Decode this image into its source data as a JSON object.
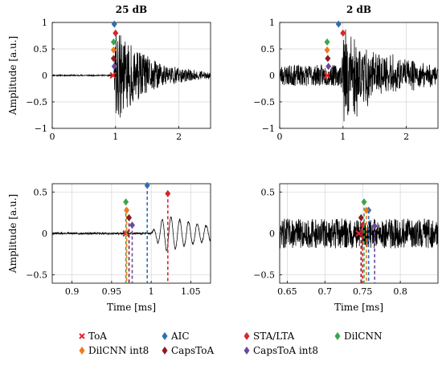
{
  "chart_data": [
    {
      "type": "line",
      "title": "25 dB",
      "xlabel": "",
      "ylabel": "Amplitude [a.u.]",
      "xlim": [
        0,
        2.5
      ],
      "ylim": [
        -1,
        1
      ],
      "xticks": [
        "0",
        "1",
        "2"
      ],
      "yticks": [
        "−1",
        "−0.5",
        "0",
        "0.5",
        "1"
      ],
      "grid": true,
      "signal": {
        "kind": "acoustic-burst",
        "noise": 0.012,
        "onset": 0.97,
        "peak": 0.95,
        "decay": 0.55,
        "seed": 11
      },
      "markers": [
        {
          "method": "ToA",
          "x": 0.96,
          "y": 0.0
        },
        {
          "method": "AIC",
          "x": 0.98,
          "y": 0.97
        },
        {
          "method": "STA/LTA",
          "x": 1.0,
          "y": 0.8
        },
        {
          "method": "DilCNN",
          "x": 0.97,
          "y": 0.63
        },
        {
          "method": "DilCNN int8",
          "x": 0.97,
          "y": 0.48
        },
        {
          "method": "CapsToA",
          "x": 0.97,
          "y": 0.32
        },
        {
          "method": "CapsToA int8",
          "x": 0.98,
          "y": 0.17
        }
      ]
    },
    {
      "type": "line",
      "title": "2 dB",
      "xlabel": "",
      "ylabel": "",
      "xlim": [
        0,
        2.5
      ],
      "ylim": [
        -1,
        1
      ],
      "xticks": [
        "0",
        "1",
        "2"
      ],
      "yticks": [
        "−1",
        "−0.5",
        "0",
        "0.5",
        "1"
      ],
      "grid": true,
      "signal": {
        "kind": "acoustic-burst",
        "noise": 0.2,
        "onset": 0.97,
        "peak": 0.95,
        "decay": 0.55,
        "seed": 23
      },
      "markers": [
        {
          "method": "ToA",
          "x": 0.75,
          "y": 0.0
        },
        {
          "method": "AIC",
          "x": 0.93,
          "y": 0.97
        },
        {
          "method": "STA/LTA",
          "x": 1.0,
          "y": 0.8
        },
        {
          "method": "DilCNN",
          "x": 0.75,
          "y": 0.63
        },
        {
          "method": "DilCNN int8",
          "x": 0.75,
          "y": 0.48
        },
        {
          "method": "CapsToA",
          "x": 0.76,
          "y": 0.32
        },
        {
          "method": "CapsToA int8",
          "x": 0.77,
          "y": 0.17
        }
      ]
    },
    {
      "type": "line",
      "title": "",
      "xlabel": "Time [ms]",
      "ylabel": "Amplitude [a.u.]",
      "xlim": [
        0.875,
        1.075
      ],
      "ylim": [
        -0.6,
        0.6
      ],
      "xticks": [
        "0.9",
        "0.95",
        "1",
        "1.05"
      ],
      "yticks": [
        "−0.5",
        "0",
        "0.5"
      ],
      "grid": true,
      "signal": {
        "kind": "zoom-burst",
        "noise": 0.012,
        "onset": 1.0,
        "peak": 0.3,
        "freq": 90,
        "decay": 0.06,
        "seed": 31
      },
      "markers": [
        {
          "method": "ToA",
          "x": 0.968,
          "y": 0.0
        },
        {
          "method": "AIC",
          "x": 0.995,
          "y": 0.58
        },
        {
          "method": "STA/LTA",
          "x": 1.021,
          "y": 0.48
        },
        {
          "method": "DilCNN",
          "x": 0.968,
          "y": 0.38
        },
        {
          "method": "DilCNN int8",
          "x": 0.969,
          "y": 0.28
        },
        {
          "method": "CapsToA",
          "x": 0.972,
          "y": 0.19
        },
        {
          "method": "CapsToA int8",
          "x": 0.976,
          "y": 0.1
        }
      ]
    },
    {
      "type": "line",
      "title": "",
      "xlabel": "Time [ms]",
      "ylabel": "",
      "xlim": [
        0.64,
        0.85
      ],
      "ylim": [
        -0.6,
        0.6
      ],
      "xticks": [
        "0.65",
        "0.7",
        "0.75",
        "0.8"
      ],
      "yticks": [
        "−0.5",
        "0",
        "0.5"
      ],
      "grid": true,
      "signal": {
        "kind": "noise",
        "noise": 0.18,
        "seed": 47
      },
      "markers": [
        {
          "method": "ToA",
          "x": 0.745,
          "y": 0.0
        },
        {
          "method": "AIC",
          "x": 0.758,
          "y": 0.28
        },
        {
          "method": "STA/LTA",
          "x": 0.75,
          "y": 0.1
        },
        {
          "method": "DilCNN",
          "x": 0.752,
          "y": 0.38
        },
        {
          "method": "DilCNN int8",
          "x": 0.755,
          "y": 0.28
        },
        {
          "method": "CapsToA",
          "x": 0.748,
          "y": 0.19
        },
        {
          "method": "CapsToA int8",
          "x": 0.766,
          "y": 0.09
        }
      ]
    }
  ],
  "legend": [
    {
      "label": "ToA",
      "marker": "cross",
      "color": "#e8202a"
    },
    {
      "label": "AIC",
      "marker": "diamond",
      "color": "#2f6db5"
    },
    {
      "label": "STA/LTA",
      "marker": "diamond",
      "color": "#d7262f"
    },
    {
      "label": "DilCNN",
      "marker": "diamond",
      "color": "#3aa64c"
    },
    {
      "label": "DilCNN int8",
      "marker": "diamond",
      "color": "#f07820"
    },
    {
      "label": "CapsToA",
      "marker": "diamond",
      "color": "#8a1c22"
    },
    {
      "label": "CapsToA int8",
      "marker": "diamond",
      "color": "#6a4aa0"
    }
  ],
  "legend_placement": "bottom"
}
